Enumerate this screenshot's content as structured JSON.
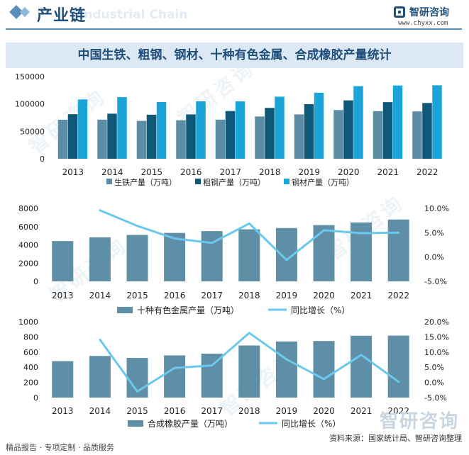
{
  "header": {
    "title": "产业链",
    "title_en": "Industrial Chain",
    "brand": "智研咨询",
    "brand_url": "www.chyxx.com"
  },
  "banner_title": "中国生铁、粗钢、钢材、十种有色金属、合成橡胶产量统计",
  "watermark": "智研咨询",
  "footer": {
    "left": "精品报告 · 专项定制 · 品质服务",
    "right": "资料来源：国家统计局、智研咨询整理"
  },
  "colors": {
    "pig_iron": "#5b8ea4",
    "crude_steel": "#0f5878",
    "steel": "#1aa4d8",
    "bar": "#5f8fa6",
    "line": "#6ac8ec",
    "accent": "#1f4e7a"
  },
  "chart_data": [
    {
      "type": "bar",
      "categories": [
        "2013",
        "2014",
        "2015",
        "2016",
        "2017",
        "2018",
        "2019",
        "2020",
        "2021",
        "2022"
      ],
      "series": [
        {
          "name": "生铁产量（万吨）",
          "values": [
            71150,
            71374,
            69141,
            70227,
            71362,
            77105,
            80937,
            88898,
            86857,
            86383
          ]
        },
        {
          "name": "粗钢产量（万吨）",
          "values": [
            81314,
            82231,
            80383,
            80837,
            87074,
            92826,
            99634,
            106477,
            103279,
            101796
          ]
        },
        {
          "name": "钢材产量（万吨）",
          "values": [
            108201,
            112513,
            103468,
            104813,
            104642,
            113287,
            120457,
            132489,
            133667,
            134034
          ]
        }
      ],
      "ylim": [
        0,
        150000
      ],
      "yticks": [
        "0",
        "50000",
        "100000",
        "150000"
      ],
      "legend": "bottom"
    },
    {
      "type": "bar",
      "categories": [
        "2013",
        "2014",
        "2015",
        "2016",
        "2017",
        "2018",
        "2019",
        "2020",
        "2021",
        "2022"
      ],
      "series": [
        {
          "name": "十种有色金属产量（万吨）",
          "type": "bar",
          "values": [
            4413,
            4828,
            5090,
            5310,
            5501,
            5703,
            5842,
            6168,
            6454,
            6774
          ]
        },
        {
          "name": "同比增长（%）",
          "type": "line",
          "axis": "right",
          "values": [
            null,
            9.6,
            6.4,
            3.8,
            2.9,
            6.9,
            -0.6,
            5.5,
            4.9,
            5.0
          ]
        }
      ],
      "ylim": [
        0,
        8000
      ],
      "yticks": [
        "0",
        "2000",
        "4000",
        "6000",
        "8000"
      ],
      "y2lim": [
        -5,
        10
      ],
      "y2ticks": [
        "-5.0%",
        "0.0%",
        "5.0%",
        "10.0%"
      ],
      "legend": "bottom"
    },
    {
      "type": "bar",
      "categories": [
        "2013",
        "2014",
        "2015",
        "2016",
        "2017",
        "2018",
        "2019",
        "2020",
        "2021",
        "2022"
      ],
      "series": [
        {
          "name": "合成橡胶产量（万吨）",
          "type": "bar",
          "values": [
            481,
            549,
            523,
            557,
            579,
            687,
            740,
            746,
            815,
            817
          ]
        },
        {
          "name": "同比增长（%）",
          "type": "line",
          "axis": "right",
          "values": [
            null,
            14.1,
            -3.0,
            4.8,
            5.6,
            16.3,
            7.6,
            1.1,
            9.1,
            0.2
          ]
        }
      ],
      "ylim": [
        0,
        1000
      ],
      "yticks": [
        "0",
        "200",
        "400",
        "600",
        "800",
        "1000"
      ],
      "y2lim": [
        -5,
        20
      ],
      "y2ticks": [
        "-5.0%",
        "0.0%",
        "5.0%",
        "10.0%",
        "15.0%",
        "20.0%"
      ],
      "legend": "bottom"
    }
  ]
}
